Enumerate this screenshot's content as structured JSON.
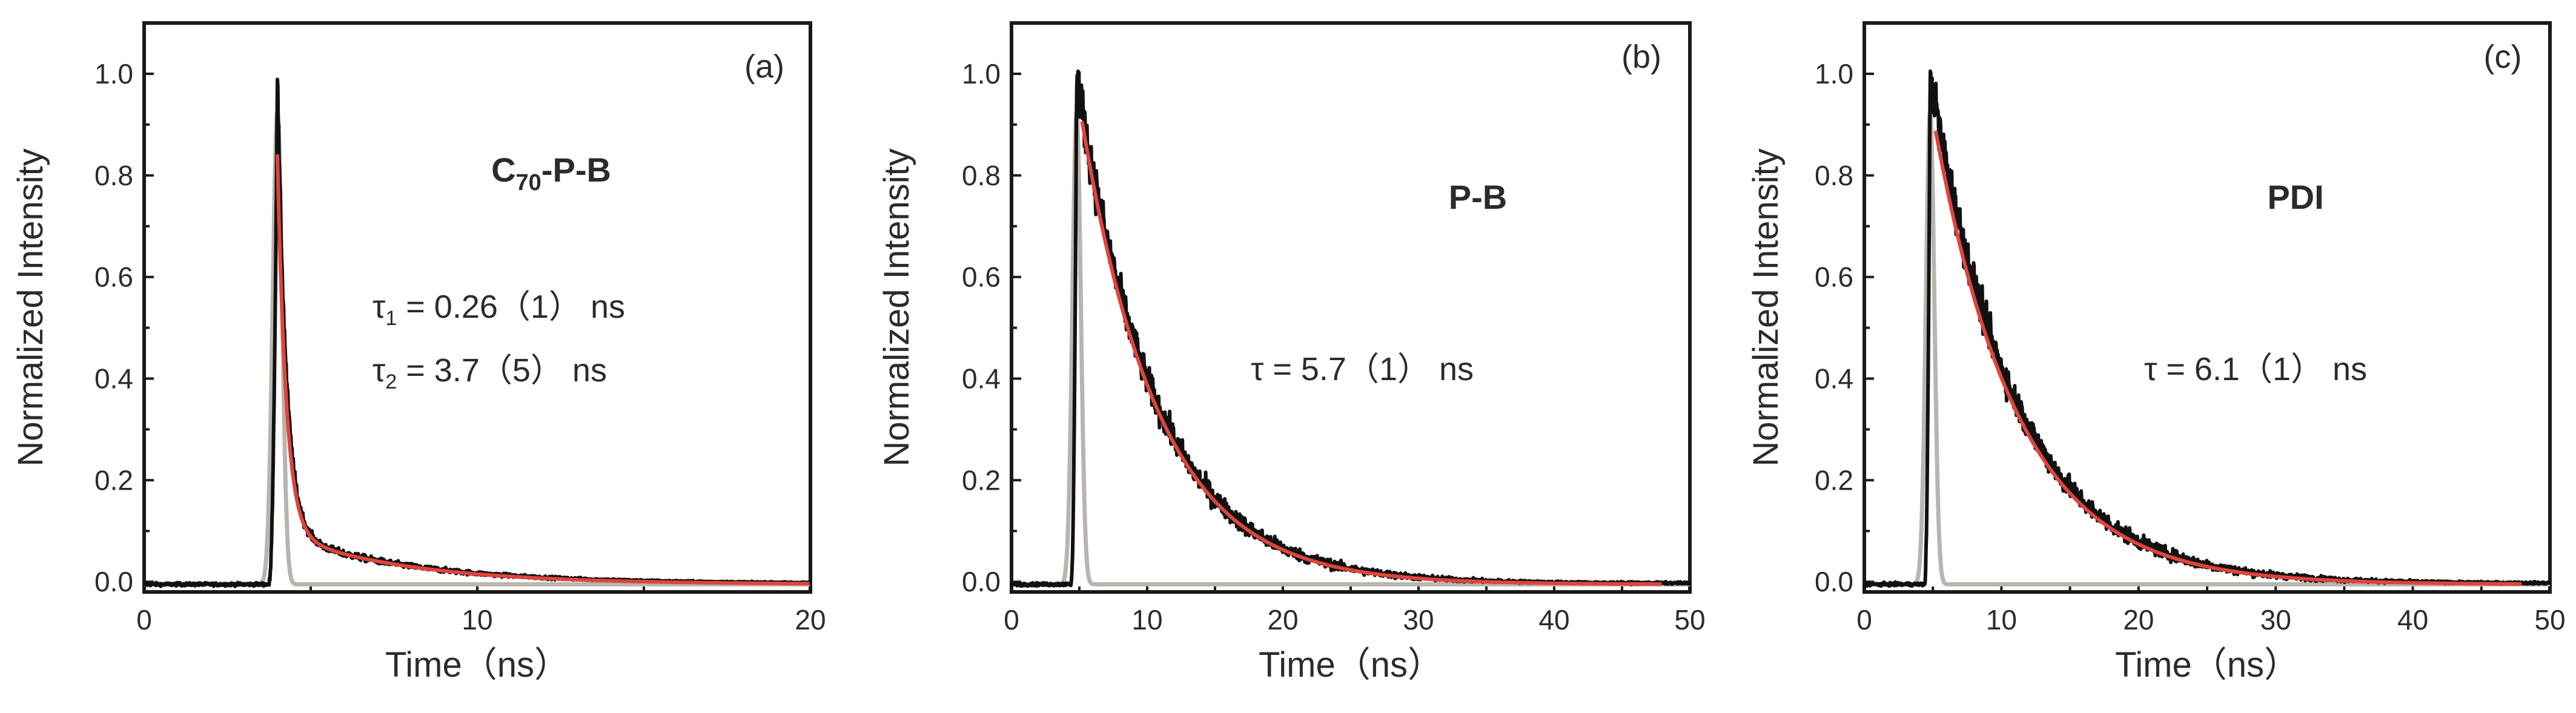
{
  "chart_data": [
    {
      "type": "line",
      "panel_tag": "(a)",
      "sample": {
        "main": "C",
        "sub": "70",
        "rest": "-P-B"
      },
      "xlabel": "Time（ns）",
      "ylabel": "Normalized Intensity",
      "xlim": [
        0,
        20
      ],
      "ylim": [
        -0.02,
        1.1
      ],
      "xticks": [
        0,
        10,
        20
      ],
      "yticks": [
        0.0,
        0.2,
        0.4,
        0.6,
        0.8,
        1.0
      ],
      "ytick_labels": [
        "0.0",
        "0.2",
        "0.4",
        "0.6",
        "0.8",
        "1.0"
      ],
      "annotations": [
        {
          "sym": "τ",
          "sub": "1",
          "text": " = 0.26（1） ns"
        },
        {
          "sym": "τ",
          "sub": "2",
          "text": " = 3.7（5） ns"
        }
      ],
      "series": [
        {
          "name": "decay",
          "color": "#111111",
          "peak_time": 4.0,
          "amplitudes": [
            0.9,
            0.1
          ],
          "lifetimes": [
            0.26,
            3.7
          ],
          "noise": 0.02,
          "x_end": 20
        },
        {
          "name": "IRF",
          "color": "#b9b4ae",
          "peak_time": 4.0,
          "width": 0.25
        },
        {
          "name": "fit",
          "color": "#e0443c",
          "start": 4.0,
          "end": 20,
          "amplitudes": [
            0.8,
            0.11
          ],
          "lifetimes": [
            0.26,
            3.7
          ]
        }
      ]
    },
    {
      "type": "line",
      "panel_tag": "(b)",
      "sample": {
        "main": "P-B",
        "sub": "",
        "rest": ""
      },
      "xlabel": "Time（ns）",
      "ylabel": "Normalized Intensity",
      "xlim": [
        0,
        50
      ],
      "ylim": [
        -0.02,
        1.1
      ],
      "xticks": [
        0,
        10,
        20,
        30,
        40,
        50
      ],
      "yticks": [
        0.0,
        0.2,
        0.4,
        0.6,
        0.8,
        1.0
      ],
      "ytick_labels": [
        "0.0",
        "0.2",
        "0.4",
        "0.6",
        "0.8",
        "1.0"
      ],
      "annotations": [
        {
          "sym": "τ",
          "sub": "",
          "text": " = 5.7（1） ns"
        }
      ],
      "series": [
        {
          "name": "decay",
          "color": "#111111",
          "peak_time": 4.8,
          "amplitudes": [
            1.0
          ],
          "lifetimes": [
            5.7
          ],
          "noise": 0.035,
          "x_end": 50
        },
        {
          "name": "IRF",
          "color": "#b9b4ae",
          "peak_time": 4.8,
          "width": 0.55
        },
        {
          "name": "fit",
          "color": "#e0443c",
          "start": 5.2,
          "end": 48,
          "amplitudes": [
            0.98
          ],
          "lifetimes": [
            5.7
          ]
        }
      ]
    },
    {
      "type": "line",
      "panel_tag": "(c)",
      "sample": {
        "main": "PDI",
        "sub": "",
        "rest": ""
      },
      "xlabel": "Time（ns）",
      "ylabel": "Normalized Intensity",
      "xlim": [
        0,
        50
      ],
      "ylim": [
        -0.02,
        1.1
      ],
      "xticks": [
        0,
        10,
        20,
        30,
        40,
        50
      ],
      "yticks": [
        0.0,
        0.2,
        0.4,
        0.6,
        0.8,
        1.0
      ],
      "ytick_labels": [
        "0.0",
        "0.2",
        "0.4",
        "0.6",
        "0.8",
        "1.0"
      ],
      "annotations": [
        {
          "sym": "τ",
          "sub": "",
          "text": " = 6.1（1） ns"
        }
      ],
      "series": [
        {
          "name": "decay",
          "color": "#111111",
          "peak_time": 4.8,
          "amplitudes": [
            1.0
          ],
          "lifetimes": [
            6.1
          ],
          "noise": 0.035,
          "x_end": 50
        },
        {
          "name": "IRF",
          "color": "#b9b4ae",
          "peak_time": 4.8,
          "width": 0.55
        },
        {
          "name": "fit",
          "color": "#e0443c",
          "start": 5.2,
          "end": 48,
          "amplitudes": [
            0.96
          ],
          "lifetimes": [
            6.1
          ]
        }
      ]
    }
  ]
}
